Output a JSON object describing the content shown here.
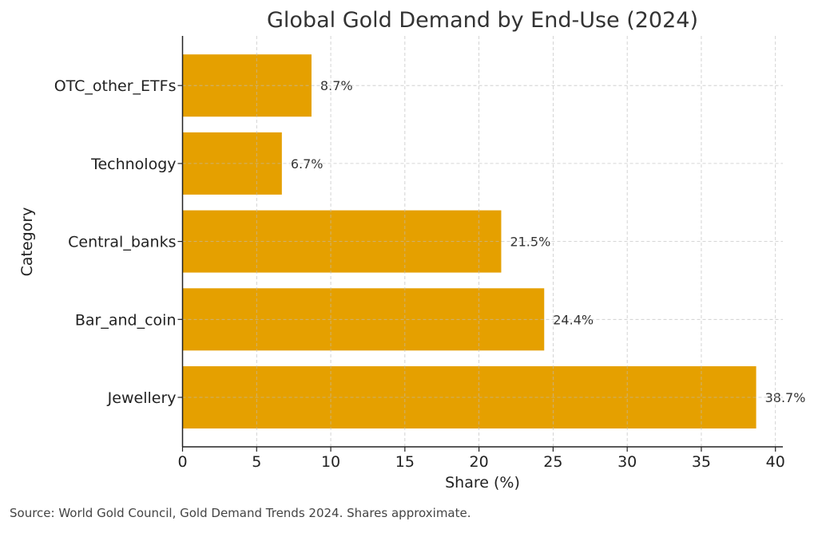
{
  "chart_data": {
    "type": "bar",
    "orientation": "horizontal",
    "title": "Global Gold Demand by End-Use (2024)",
    "xlabel": "Share (%)",
    "ylabel": "Category",
    "categories": [
      "Jewellery",
      "Bar_and_coin",
      "Central_banks",
      "Technology",
      "OTC_other_ETFs"
    ],
    "values": [
      38.7,
      24.4,
      21.5,
      6.7,
      8.7
    ],
    "data_labels": [
      "38.7%",
      "24.4%",
      "21.5%",
      "6.7%",
      "8.7%"
    ],
    "xlim": [
      0,
      40.5
    ],
    "xticks": [
      0,
      5,
      10,
      15,
      20,
      25,
      30,
      35,
      40
    ],
    "grid": true,
    "bar_color": "#E5A000"
  },
  "footnote": "Source: World Gold Council, Gold Demand Trends 2024. Shares approximate."
}
